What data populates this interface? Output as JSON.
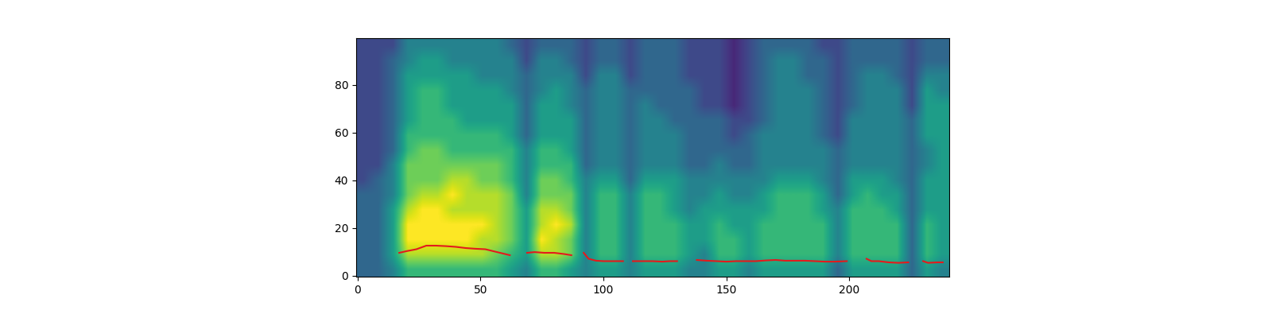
{
  "chart_data": {
    "type": "heatmap",
    "xlim": [
      -0.5,
      240.5
    ],
    "ylim": [
      -0.5,
      99.5
    ],
    "xticks": [
      0,
      50,
      100,
      150,
      200
    ],
    "yticks": [
      0,
      20,
      40,
      60,
      80
    ],
    "range": [
      0,
      9
    ],
    "cells": [
      [
        3,
        3,
        4,
        6,
        6,
        6,
        6,
        6,
        6,
        6,
        5,
        4,
        6,
        6,
        5,
        4,
        5,
        5,
        4,
        5,
        5,
        5,
        4,
        4,
        5,
        5,
        4,
        5,
        5,
        5,
        5,
        5,
        3,
        5,
        5,
        5,
        5,
        3,
        5,
        4
      ],
      [
        3,
        3,
        5,
        8,
        8,
        8,
        8,
        8,
        8,
        7,
        6,
        5,
        8,
        8,
        7,
        4,
        6,
        6,
        4,
        6,
        6,
        6,
        5,
        4,
        6,
        6,
        5,
        6,
        6,
        6,
        6,
        6,
        4,
        6,
        6,
        6,
        6,
        3,
        6,
        5
      ],
      [
        3,
        3,
        5,
        9,
        9,
        9,
        9,
        9,
        8,
        8,
        7,
        5,
        9,
        8,
        7,
        4,
        6,
        6,
        4,
        6,
        6,
        6,
        5,
        5,
        6,
        6,
        5,
        6,
        6,
        6,
        6,
        6,
        4,
        6,
        6,
        6,
        6,
        3,
        6,
        5
      ],
      [
        3,
        3,
        5,
        9,
        9,
        9,
        9,
        9,
        9,
        8,
        7,
        5,
        8,
        9,
        8,
        4,
        6,
        6,
        4,
        6,
        6,
        6,
        5,
        5,
        6,
        5,
        5,
        6,
        6,
        6,
        6,
        6,
        4,
        6,
        6,
        6,
        6,
        3,
        6,
        5
      ],
      [
        3,
        3,
        5,
        8,
        9,
        9,
        8,
        8,
        8,
        8,
        7,
        5,
        8,
        8,
        7,
        4,
        6,
        6,
        4,
        6,
        6,
        5,
        4,
        5,
        5,
        5,
        5,
        5,
        6,
        6,
        6,
        5,
        4,
        6,
        6,
        6,
        5,
        3,
        5,
        5
      ],
      [
        3,
        3,
        4,
        7,
        8,
        8,
        9,
        8,
        8,
        8,
        7,
        4,
        7,
        7,
        7,
        4,
        6,
        6,
        4,
        6,
        6,
        5,
        4,
        4,
        5,
        4,
        4,
        5,
        6,
        6,
        6,
        5,
        3,
        5,
        6,
        5,
        5,
        3,
        5,
        5
      ],
      [
        2,
        3,
        4,
        7,
        7,
        7,
        8,
        8,
        7,
        7,
        6,
        4,
        7,
        7,
        6,
        4,
        5,
        5,
        3,
        5,
        5,
        5,
        4,
        4,
        4,
        4,
        4,
        4,
        5,
        5,
        5,
        4,
        3,
        5,
        5,
        5,
        4,
        3,
        5,
        5
      ],
      [
        2,
        2,
        4,
        7,
        7,
        7,
        7,
        7,
        7,
        7,
        6,
        4,
        6,
        6,
        6,
        3,
        4,
        4,
        3,
        4,
        4,
        4,
        3,
        3,
        4,
        3,
        3,
        4,
        4,
        4,
        4,
        4,
        3,
        4,
        4,
        4,
        4,
        3,
        4,
        5
      ],
      [
        2,
        2,
        3,
        6,
        7,
        7,
        6,
        6,
        6,
        6,
        6,
        4,
        6,
        6,
        5,
        3,
        4,
        4,
        3,
        4,
        4,
        4,
        3,
        3,
        3,
        3,
        3,
        4,
        4,
        4,
        4,
        4,
        3,
        4,
        4,
        4,
        4,
        3,
        4,
        5
      ],
      [
        2,
        2,
        3,
        6,
        6,
        6,
        6,
        6,
        6,
        6,
        5,
        3,
        5,
        5,
        5,
        3,
        4,
        4,
        3,
        4,
        4,
        4,
        3,
        3,
        3,
        2,
        3,
        4,
        4,
        4,
        4,
        3,
        2,
        4,
        4,
        4,
        4,
        3,
        5,
        5
      ],
      [
        2,
        2,
        3,
        5,
        6,
        6,
        6,
        5,
        5,
        5,
        5,
        3,
        5,
        5,
        5,
        3,
        4,
        4,
        3,
        4,
        4,
        3,
        3,
        3,
        3,
        2,
        2,
        3,
        4,
        4,
        4,
        3,
        2,
        4,
        4,
        4,
        4,
        3,
        5,
        5
      ],
      [
        2,
        2,
        3,
        5,
        6,
        6,
        5,
        5,
        5,
        5,
        5,
        3,
        5,
        5,
        4,
        3,
        4,
        4,
        3,
        4,
        3,
        3,
        3,
        2,
        2,
        1,
        2,
        3,
        4,
        4,
        4,
        3,
        2,
        3,
        4,
        4,
        4,
        2,
        5,
        5
      ],
      [
        2,
        2,
        3,
        5,
        6,
        6,
        5,
        5,
        5,
        5,
        4,
        3,
        4,
        5,
        4,
        3,
        4,
        4,
        3,
        3,
        3,
        3,
        3,
        2,
        2,
        1,
        2,
        3,
        4,
        4,
        4,
        3,
        2,
        3,
        4,
        4,
        4,
        2,
        5,
        4
      ],
      [
        2,
        2,
        3,
        5,
        5,
        5,
        5,
        5,
        4,
        4,
        4,
        3,
        4,
        4,
        4,
        2,
        4,
        4,
        2,
        3,
        3,
        3,
        2,
        2,
        2,
        1,
        2,
        3,
        4,
        4,
        3,
        3,
        2,
        3,
        4,
        4,
        3,
        2,
        4,
        4
      ],
      [
        2,
        2,
        3,
        4,
        5,
        5,
        4,
        4,
        4,
        4,
        4,
        2,
        4,
        4,
        3,
        2,
        3,
        3,
        2,
        3,
        3,
        3,
        2,
        2,
        2,
        1,
        2,
        3,
        4,
        4,
        3,
        3,
        2,
        3,
        3,
        3,
        3,
        2,
        3,
        3
      ],
      [
        2,
        2,
        2,
        4,
        4,
        4,
        4,
        4,
        4,
        4,
        3,
        2,
        3,
        3,
        3,
        2,
        3,
        3,
        2,
        3,
        3,
        3,
        2,
        2,
        2,
        1,
        2,
        3,
        3,
        3,
        3,
        2,
        2,
        3,
        3,
        3,
        3,
        2,
        3,
        3
      ]
    ],
    "series": [
      {
        "type": "line",
        "color": "#e41a1c",
        "x": [
          17,
          20,
          24,
          28,
          32,
          36,
          40,
          44,
          48,
          52,
          56,
          60,
          62,
          65,
          69,
          72,
          76,
          80,
          84,
          87,
          90,
          92,
          94,
          97,
          100,
          104,
          108,
          110,
          112,
          116,
          120,
          124,
          127,
          130,
          134,
          138,
          142,
          146,
          150,
          154,
          158,
          162,
          166,
          170,
          174,
          178,
          182,
          186,
          190,
          194,
          199,
          203,
          207,
          209,
          212,
          216,
          220,
          224,
          227,
          230,
          232,
          236,
          238
        ],
        "values": [
          9.5,
          10.2,
          11,
          12.5,
          12.5,
          12.3,
          12,
          11.5,
          11.2,
          11,
          10,
          9,
          8.5,
          null,
          9.5,
          9.8,
          9.5,
          9.5,
          9,
          8.5,
          null,
          9.5,
          7,
          6.2,
          6,
          6,
          6,
          null,
          6,
          6,
          6,
          5.8,
          6,
          6,
          null,
          6.5,
          6.2,
          6,
          5.8,
          6,
          6,
          6,
          6.3,
          6.5,
          6.2,
          6.2,
          6.2,
          6,
          5.8,
          5.8,
          6,
          null,
          7,
          6,
          6,
          5.5,
          5.3,
          5.5,
          null,
          6,
          5.3,
          5.5,
          5.5
        ]
      }
    ]
  }
}
